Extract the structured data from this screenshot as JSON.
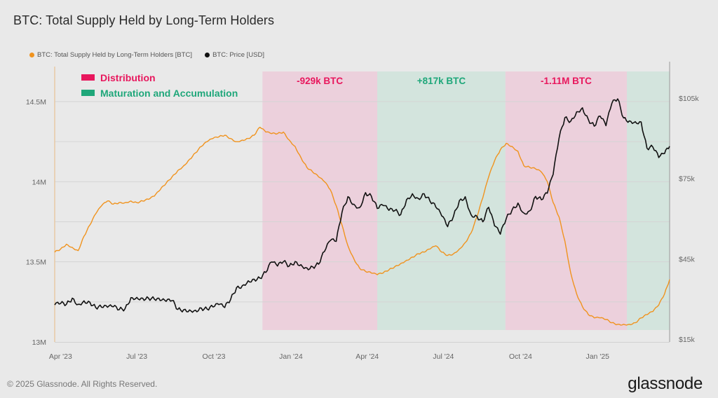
{
  "title": "BTC: Total Supply Held by Long-Term Holders",
  "legend": [
    {
      "label": "BTC: Total Supply Held by Long-Term Holders [BTC]",
      "color": "#f0931e"
    },
    {
      "label": "BTC: Price [USD]",
      "color": "#111111"
    }
  ],
  "footer": "© 2025 Glassnode. All Rights Reserved.",
  "brand": "glassnode",
  "chart_data": {
    "type": "line",
    "title": "BTC: Total Supply Held by Long-Term Holders",
    "x_ticks": [
      "Apr '23",
      "Jul '23",
      "Oct '23",
      "Jan '24",
      "Apr '24",
      "Jul '24",
      "Oct '24",
      "Jan '25"
    ],
    "x_range": [
      "2023-03-25",
      "2025-03-28"
    ],
    "left_axis": {
      "ticks": [
        "13M",
        "13.5M",
        "14M",
        "14.5M"
      ],
      "range": [
        13.0,
        14.58
      ],
      "unit": "M BTC"
    },
    "right_axis": {
      "ticks": [
        "$15k",
        "$45k",
        "$75k",
        "$105k"
      ],
      "range": [
        15,
        107
      ],
      "unit": "$k"
    },
    "grid": true,
    "key": [
      {
        "label": "Distribution",
        "color": "#e8175d"
      },
      {
        "label": "Maturation and Accumulation",
        "color": "#1fa77a"
      }
    ],
    "bands": [
      {
        "start": "2023-11-28",
        "end": "2024-04-13",
        "type": "distribution",
        "label": "-929k BTC",
        "fill": "#ecd0dc",
        "label_color": "#e8175d"
      },
      {
        "start": "2024-04-13",
        "end": "2024-09-13",
        "type": "accumulation",
        "label": "+817k BTC",
        "fill": "#d3e4dd",
        "label_color": "#1fa77a"
      },
      {
        "start": "2024-09-13",
        "end": "2025-02-05",
        "type": "distribution",
        "label": "-1.11M BTC",
        "fill": "#ecd0dc",
        "label_color": "#e8175d"
      },
      {
        "start": "2025-02-05",
        "end": "2025-03-28",
        "type": "accumulation",
        "label": "",
        "fill": "#d3e4dd",
        "label_color": "#1fa77a"
      }
    ],
    "series": [
      {
        "name": "BTC: Total Supply Held by Long-Term Holders [BTC]",
        "axis": "left",
        "color": "#f0931e",
        "unit": "M BTC",
        "x": [
          "2023-03-25",
          "2023-04-01",
          "2023-04-08",
          "2023-04-15",
          "2023-04-22",
          "2023-04-29",
          "2023-05-06",
          "2023-05-13",
          "2023-05-20",
          "2023-05-27",
          "2023-06-03",
          "2023-06-10",
          "2023-06-17",
          "2023-06-24",
          "2023-07-01",
          "2023-07-08",
          "2023-07-15",
          "2023-07-22",
          "2023-07-29",
          "2023-08-05",
          "2023-08-12",
          "2023-08-19",
          "2023-08-26",
          "2023-09-02",
          "2023-09-09",
          "2023-09-16",
          "2023-09-23",
          "2023-09-30",
          "2023-10-07",
          "2023-10-14",
          "2023-10-21",
          "2023-10-28",
          "2023-11-04",
          "2023-11-11",
          "2023-11-18",
          "2023-11-25",
          "2023-12-02",
          "2023-12-09",
          "2023-12-16",
          "2023-12-23",
          "2023-12-30",
          "2024-01-06",
          "2024-01-13",
          "2024-01-20",
          "2024-01-27",
          "2024-02-03",
          "2024-02-10",
          "2024-02-17",
          "2024-02-24",
          "2024-03-02",
          "2024-03-09",
          "2024-03-16",
          "2024-03-23",
          "2024-03-30",
          "2024-04-06",
          "2024-04-13",
          "2024-04-20",
          "2024-04-27",
          "2024-05-04",
          "2024-05-11",
          "2024-05-18",
          "2024-05-25",
          "2024-06-01",
          "2024-06-08",
          "2024-06-15",
          "2024-06-22",
          "2024-06-29",
          "2024-07-06",
          "2024-07-13",
          "2024-07-20",
          "2024-07-27",
          "2024-08-03",
          "2024-08-10",
          "2024-08-17",
          "2024-08-24",
          "2024-08-31",
          "2024-09-07",
          "2024-09-14",
          "2024-09-21",
          "2024-09-28",
          "2024-10-05",
          "2024-10-12",
          "2024-10-19",
          "2024-10-26",
          "2024-11-02",
          "2024-11-09",
          "2024-11-16",
          "2024-11-23",
          "2024-11-30",
          "2024-12-07",
          "2024-12-14",
          "2024-12-21",
          "2024-12-28",
          "2025-01-04",
          "2025-01-11",
          "2025-01-18",
          "2025-01-25",
          "2025-02-01",
          "2025-02-08",
          "2025-02-15",
          "2025-02-22",
          "2025-03-01",
          "2025-03-08",
          "2025-03-15",
          "2025-03-22",
          "2025-03-28"
        ],
        "values": [
          13.56,
          13.58,
          13.61,
          13.59,
          13.57,
          13.66,
          13.73,
          13.8,
          13.85,
          13.88,
          13.86,
          13.87,
          13.87,
          13.88,
          13.87,
          13.88,
          13.89,
          13.91,
          13.95,
          13.99,
          14.03,
          14.07,
          14.1,
          14.14,
          14.18,
          14.22,
          14.25,
          14.27,
          14.28,
          14.29,
          14.27,
          14.25,
          14.26,
          14.27,
          14.29,
          14.34,
          14.31,
          14.3,
          14.3,
          14.31,
          14.26,
          14.22,
          14.15,
          14.09,
          14.06,
          14.03,
          14.0,
          13.95,
          13.85,
          13.73,
          13.6,
          13.52,
          13.46,
          13.44,
          13.43,
          13.42,
          13.43,
          13.45,
          13.47,
          13.49,
          13.51,
          13.53,
          13.55,
          13.56,
          13.58,
          13.6,
          13.56,
          13.54,
          13.55,
          13.58,
          13.62,
          13.68,
          13.78,
          13.9,
          14.03,
          14.13,
          14.2,
          14.24,
          14.22,
          14.19,
          14.1,
          14.09,
          14.08,
          14.06,
          14.0,
          13.87,
          13.78,
          13.63,
          13.43,
          13.3,
          13.22,
          13.17,
          13.15,
          13.15,
          13.14,
          13.12,
          13.11,
          13.11,
          13.11,
          13.12,
          13.15,
          13.17,
          13.19,
          13.23,
          13.3,
          13.39
        ]
      },
      {
        "name": "BTC: Price [USD]",
        "axis": "right",
        "color": "#111111",
        "unit": "$k",
        "x": [
          "2023-03-25",
          "2023-04-01",
          "2023-04-08",
          "2023-04-15",
          "2023-04-22",
          "2023-04-29",
          "2023-05-06",
          "2023-05-13",
          "2023-05-20",
          "2023-05-27",
          "2023-06-03",
          "2023-06-10",
          "2023-06-17",
          "2023-06-24",
          "2023-07-01",
          "2023-07-08",
          "2023-07-15",
          "2023-07-22",
          "2023-07-29",
          "2023-08-05",
          "2023-08-12",
          "2023-08-19",
          "2023-08-26",
          "2023-09-02",
          "2023-09-09",
          "2023-09-16",
          "2023-09-23",
          "2023-09-30",
          "2023-10-07",
          "2023-10-14",
          "2023-10-21",
          "2023-10-28",
          "2023-11-04",
          "2023-11-11",
          "2023-11-18",
          "2023-11-25",
          "2023-12-02",
          "2023-12-09",
          "2023-12-16",
          "2023-12-23",
          "2023-12-30",
          "2024-01-06",
          "2024-01-13",
          "2024-01-20",
          "2024-01-27",
          "2024-02-03",
          "2024-02-10",
          "2024-02-17",
          "2024-02-24",
          "2024-03-02",
          "2024-03-09",
          "2024-03-16",
          "2024-03-23",
          "2024-03-30",
          "2024-04-06",
          "2024-04-13",
          "2024-04-20",
          "2024-04-27",
          "2024-05-04",
          "2024-05-11",
          "2024-05-18",
          "2024-05-25",
          "2024-06-01",
          "2024-06-08",
          "2024-06-15",
          "2024-06-22",
          "2024-06-29",
          "2024-07-06",
          "2024-07-13",
          "2024-07-20",
          "2024-07-27",
          "2024-08-03",
          "2024-08-10",
          "2024-08-17",
          "2024-08-24",
          "2024-08-31",
          "2024-09-07",
          "2024-09-14",
          "2024-09-21",
          "2024-09-28",
          "2024-10-05",
          "2024-10-12",
          "2024-10-19",
          "2024-10-26",
          "2024-11-02",
          "2024-11-09",
          "2024-11-16",
          "2024-11-23",
          "2024-11-30",
          "2024-12-07",
          "2024-12-14",
          "2024-12-21",
          "2024-12-28",
          "2025-01-04",
          "2025-01-11",
          "2025-01-18",
          "2025-01-25",
          "2025-02-01",
          "2025-02-08",
          "2025-02-15",
          "2025-02-22",
          "2025-03-01",
          "2025-03-08",
          "2025-03-15",
          "2025-03-22",
          "2025-03-28"
        ],
        "values": [
          27.8,
          28.3,
          28.0,
          30.3,
          28.0,
          29.3,
          28.8,
          26.8,
          26.9,
          26.9,
          27.1,
          26.0,
          26.4,
          30.5,
          30.6,
          30.3,
          30.3,
          29.9,
          29.4,
          29.1,
          29.4,
          26.1,
          26.0,
          25.9,
          25.8,
          26.6,
          26.2,
          27.0,
          27.9,
          26.8,
          29.8,
          34.2,
          35.0,
          36.8,
          37.4,
          37.8,
          39.9,
          43.8,
          42.3,
          43.9,
          42.3,
          44.0,
          42.8,
          41.6,
          42.0,
          43.0,
          47.7,
          51.8,
          51.5,
          62.4,
          68.2,
          65.4,
          64.1,
          69.7,
          68.4,
          63.8,
          64.9,
          63.1,
          63.0,
          61.5,
          67.1,
          69.3,
          67.5,
          69.3,
          66.5,
          64.3,
          61.0,
          57.0,
          60.8,
          66.7,
          68.2,
          61.5,
          60.9,
          58.8,
          64.2,
          57.3,
          54.2,
          60.0,
          63.3,
          65.8,
          62.1,
          62.9,
          68.3,
          67.0,
          69.5,
          76.5,
          90.0,
          97.7,
          96.4,
          99.9,
          101.4,
          97.0,
          94.5,
          98.3,
          94.7,
          103.0,
          104.7,
          97.6,
          96.5,
          96.2,
          96.1,
          86.3,
          86.7,
          82.8,
          84.3,
          87.0
        ]
      }
    ]
  }
}
